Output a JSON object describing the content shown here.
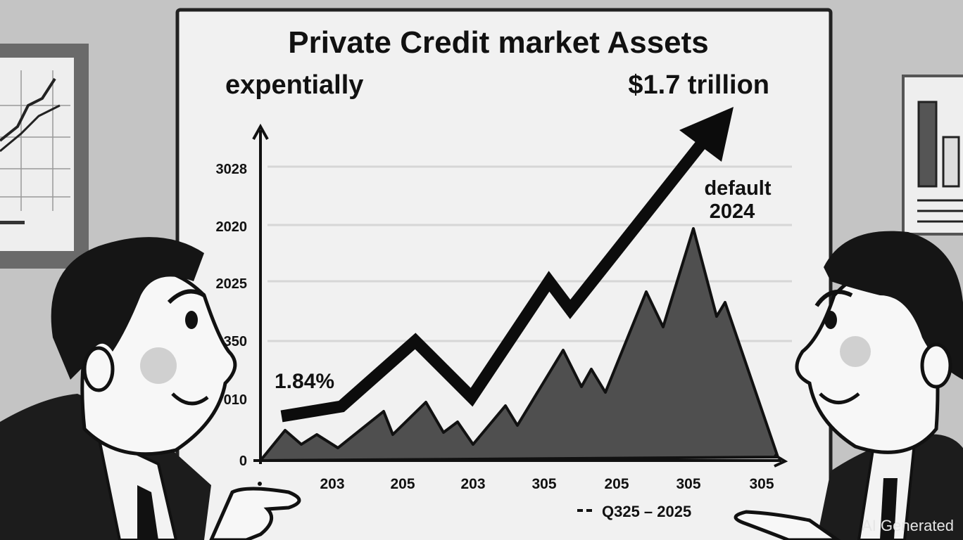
{
  "title": "Private Credit market Assets",
  "annotations": {
    "left": "expentially",
    "right": "$1.7 trillion",
    "peak": [
      "default",
      "2024"
    ],
    "start": "1.84%"
  },
  "y_axis_labels": [
    "3028",
    "2020",
    "2025",
    "350",
    "010",
    "0"
  ],
  "x_axis_labels": [
    "203",
    "205",
    "203",
    "305",
    "205",
    "305",
    "305"
  ],
  "legend": "Q325 – 2025",
  "watermark": "AI Generated"
}
